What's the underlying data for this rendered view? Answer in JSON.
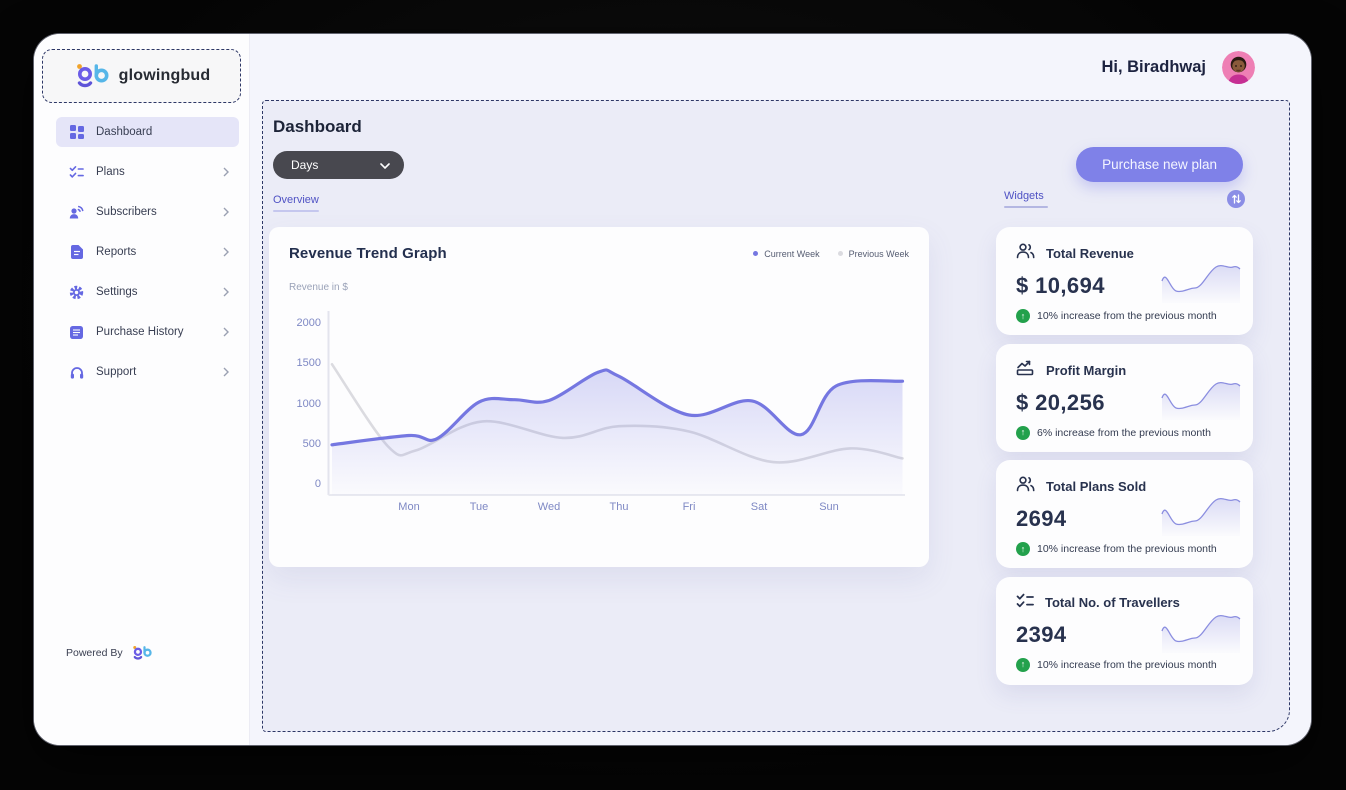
{
  "brand": {
    "name": "glowingbud",
    "powered_by_label": "Powered By"
  },
  "header": {
    "greeting": "Hi, Biradhwaj"
  },
  "sidebar": {
    "items": [
      {
        "label": "Dashboard",
        "icon": "dashboard-grid-icon",
        "active": true
      },
      {
        "label": "Plans",
        "icon": "checklist-icon",
        "active": false
      },
      {
        "label": "Subscribers",
        "icon": "subscribers-icon",
        "active": false
      },
      {
        "label": "Reports",
        "icon": "report-doc-icon",
        "active": false
      },
      {
        "label": "Settings",
        "icon": "gear-icon",
        "active": false
      },
      {
        "label": "Purchase History",
        "icon": "list-card-icon",
        "active": false
      },
      {
        "label": "Support",
        "icon": "headset-icon",
        "active": false
      }
    ]
  },
  "toolbar": {
    "page_title": "Dashboard",
    "filter_value": "Days",
    "purchase_button_label": "Purchase new plan"
  },
  "tabs": {
    "overview_label": "Overview",
    "widgets_label": "Widgets"
  },
  "chart_data": {
    "type": "line",
    "title": "Revenue Trend Graph",
    "ylabel": "Revenue in $",
    "categories": [
      "Mon",
      "Tue",
      "Wed",
      "Thu",
      "Fri",
      "Sat",
      "Sun"
    ],
    "yticks": [
      0,
      500,
      1000,
      1500,
      2000
    ],
    "ylim": [
      0,
      2000
    ],
    "grid": false,
    "legend_position": "top-right",
    "series": [
      {
        "name": "Current Week",
        "color": "#7577e1",
        "fill": true,
        "values": [
          615,
          1030,
          1050,
          1350,
          870,
          1045,
          1280
        ],
        "points": [
          [
            -1.1,
            500
          ],
          [
            0,
            615
          ],
          [
            0.4,
            575
          ],
          [
            1,
            1030
          ],
          [
            1.5,
            1060
          ],
          [
            2,
            1050
          ],
          [
            2.7,
            1400
          ],
          [
            3,
            1350
          ],
          [
            4,
            870
          ],
          [
            4.9,
            1045
          ],
          [
            5.6,
            625
          ],
          [
            6.1,
            1230
          ],
          [
            7.05,
            1290
          ]
        ]
      },
      {
        "name": "Previous Week",
        "color": "#dbdbe0",
        "fill": false,
        "values": [
          440,
          790,
          610,
          730,
          665,
          315,
          330
        ],
        "points": [
          [
            -1.1,
            1500
          ],
          [
            -0.3,
            480
          ],
          [
            0.1,
            430
          ],
          [
            1.05,
            790
          ],
          [
            2.2,
            585
          ],
          [
            3,
            730
          ],
          [
            4,
            665
          ],
          [
            5.2,
            285
          ],
          [
            6.3,
            455
          ],
          [
            7.05,
            330
          ]
        ]
      }
    ]
  },
  "widgets": {
    "cards": [
      {
        "icon": "users-icon",
        "title": "Total Revenue",
        "value": "$ 10,694",
        "change_text": "10% increase from the previous month",
        "trend": "up"
      },
      {
        "icon": "profit-chart-icon",
        "title": "Profit Margin",
        "value": "$ 20,256",
        "change_text": "6% increase from the previous month",
        "trend": "up"
      },
      {
        "icon": "users-icon",
        "title": "Total Plans Sold",
        "value": "2694",
        "change_text": "10% increase from the previous month",
        "trend": "up"
      },
      {
        "icon": "checklist-icon",
        "title": "Total No. of Travellers",
        "value": "2394",
        "change_text": "10% increase from the previous month",
        "trend": "up"
      }
    ]
  },
  "colors": {
    "accent": "#7577e1",
    "purchase_button": "#7f81e8",
    "positive": "#23a14c",
    "dashed_border": "#2d3766",
    "current_week": "#7577e1",
    "previous_week": "#dbdbe0"
  }
}
